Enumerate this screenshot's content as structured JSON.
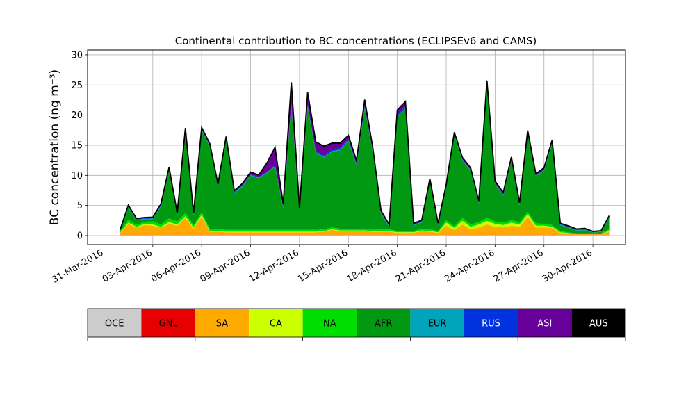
{
  "chart_data": {
    "type": "area",
    "stacked": true,
    "title": "Continental contribution to BC concentrations (ECLIPSEv6 and CAMS)",
    "ylabel": "BC concentration (ng m⁻³)",
    "xlabel": "",
    "xlim": [
      "2016-03-30",
      "2016-05-02"
    ],
    "ylim": [
      -1.5,
      30.8
    ],
    "yticks": [
      0,
      5,
      10,
      15,
      20,
      25,
      30
    ],
    "xticks": [
      "2016-03-31",
      "2016-04-03",
      "2016-04-06",
      "2016-04-09",
      "2016-04-12",
      "2016-04-15",
      "2016-04-18",
      "2016-04-21",
      "2016-04-24",
      "2016-04-27",
      "2016-04-30"
    ],
    "xtick_labels": [
      "31-Mar-2016",
      "03-Apr-2016",
      "06-Apr-2016",
      "09-Apr-2016",
      "12-Apr-2016",
      "15-Apr-2016",
      "18-Apr-2016",
      "21-Apr-2016",
      "24-Apr-2016",
      "27-Apr-2016",
      "30-Apr-2016"
    ],
    "grid": true,
    "x": [
      "2016-04-01",
      "2016-04-01 12:00",
      "2016-04-02",
      "2016-04-02 12:00",
      "2016-04-03",
      "2016-04-03 12:00",
      "2016-04-04",
      "2016-04-04 12:00",
      "2016-04-05",
      "2016-04-05 12:00",
      "2016-04-06",
      "2016-04-06 12:00",
      "2016-04-07",
      "2016-04-07 12:00",
      "2016-04-08",
      "2016-04-08 12:00",
      "2016-04-09",
      "2016-04-09 12:00",
      "2016-04-10",
      "2016-04-10 12:00",
      "2016-04-11",
      "2016-04-11 12:00",
      "2016-04-12",
      "2016-04-12 12:00",
      "2016-04-13",
      "2016-04-13 12:00",
      "2016-04-14",
      "2016-04-14 12:00",
      "2016-04-15",
      "2016-04-15 12:00",
      "2016-04-16",
      "2016-04-16 12:00",
      "2016-04-17",
      "2016-04-17 12:00",
      "2016-04-18",
      "2016-04-18 12:00",
      "2016-04-19",
      "2016-04-19 12:00",
      "2016-04-20",
      "2016-04-20 12:00",
      "2016-04-21",
      "2016-04-21 12:00",
      "2016-04-22",
      "2016-04-22 12:00",
      "2016-04-23",
      "2016-04-23 12:00",
      "2016-04-24",
      "2016-04-24 12:00",
      "2016-04-25",
      "2016-04-25 12:00",
      "2016-04-26",
      "2016-04-26 12:00",
      "2016-04-27",
      "2016-04-27 12:00",
      "2016-04-28",
      "2016-04-28 12:00",
      "2016-04-29",
      "2016-04-29 12:00",
      "2016-04-30",
      "2016-04-30 12:00",
      "2016-05-01"
    ],
    "series": [
      {
        "name": "OCE",
        "color": "#cccccc",
        "values": [
          0.1,
          0.1,
          0.1,
          0.1,
          0.1,
          0.1,
          0.1,
          0.1,
          0.1,
          0.1,
          0.1,
          0.1,
          0.1,
          0.1,
          0.1,
          0.1,
          0.1,
          0.1,
          0.1,
          0.1,
          0.1,
          0.1,
          0.1,
          0.1,
          0.1,
          0.1,
          0.1,
          0.1,
          0.1,
          0.1,
          0.1,
          0.1,
          0.1,
          0.1,
          0.1,
          0.1,
          0.1,
          0.1,
          0.1,
          0.1,
          0.1,
          0.1,
          0.1,
          0.1,
          0.1,
          0.1,
          0.1,
          0.1,
          0.1,
          0.1,
          0.1,
          0.1,
          0.1,
          0.1,
          0.1,
          0.1,
          0.1,
          0.1,
          0.1,
          0.1,
          0.1
        ]
      },
      {
        "name": "GNL",
        "color": "#e60000",
        "values": [
          0.05,
          0.05,
          0.05,
          0.05,
          0.05,
          0.05,
          0.05,
          0.05,
          0.05,
          0.05,
          0.05,
          0.05,
          0.05,
          0.05,
          0.05,
          0.05,
          0.05,
          0.05,
          0.05,
          0.05,
          0.05,
          0.05,
          0.05,
          0.05,
          0.05,
          0.05,
          0.05,
          0.05,
          0.05,
          0.05,
          0.05,
          0.05,
          0.05,
          0.05,
          0.05,
          0.05,
          0.05,
          0.05,
          0.05,
          0.05,
          0.05,
          0.05,
          0.05,
          0.05,
          0.05,
          0.05,
          0.05,
          0.05,
          0.05,
          0.05,
          0.05,
          0.05,
          0.05,
          0.05,
          0.05,
          0.05,
          0.05,
          0.05,
          0.05,
          0.05,
          0.05
        ]
      },
      {
        "name": "SA",
        "color": "#ffaa00",
        "values": [
          0.3,
          1.8,
          1.2,
          1.6,
          1.5,
          1.2,
          1.8,
          1.5,
          2.8,
          1.0,
          3.0,
          0.5,
          0.5,
          0.4,
          0.4,
          0.4,
          0.4,
          0.4,
          0.4,
          0.4,
          0.4,
          0.4,
          0.4,
          0.4,
          0.4,
          0.5,
          0.8,
          0.6,
          0.6,
          0.6,
          0.6,
          0.5,
          0.5,
          0.5,
          0.3,
          0.3,
          0.3,
          0.6,
          0.5,
          0.3,
          1.5,
          0.8,
          1.7,
          0.9,
          1.2,
          1.7,
          1.3,
          1.2,
          1.5,
          1.3,
          3.0,
          1.2,
          1.2,
          1.1,
          0.3,
          0.2,
          0.1,
          0.1,
          0.1,
          0.1,
          0.5
        ]
      },
      {
        "name": "CA",
        "color": "#ccff00",
        "values": [
          0.05,
          0.2,
          0.1,
          0.15,
          0.2,
          0.1,
          0.3,
          0.2,
          0.3,
          0.2,
          0.3,
          0.1,
          0.1,
          0.1,
          0.1,
          0.1,
          0.1,
          0.1,
          0.1,
          0.1,
          0.1,
          0.1,
          0.1,
          0.1,
          0.1,
          0.1,
          0.1,
          0.1,
          0.1,
          0.1,
          0.1,
          0.1,
          0.1,
          0.1,
          0.1,
          0.1,
          0.1,
          0.1,
          0.1,
          0.1,
          0.5,
          0.3,
          0.6,
          0.4,
          0.5,
          0.6,
          0.5,
          0.4,
          0.5,
          0.4,
          0.4,
          0.3,
          0.3,
          0.2,
          0.1,
          0.05,
          0.05,
          0.05,
          0.05,
          0.05,
          0.1
        ]
      },
      {
        "name": "NA",
        "color": "#00dd00",
        "values": [
          0.2,
          0.5,
          0.3,
          0.4,
          0.5,
          0.4,
          0.6,
          0.5,
          0.5,
          0.4,
          0.4,
          0.4,
          0.4,
          0.3,
          0.3,
          0.3,
          0.3,
          0.3,
          0.3,
          0.3,
          0.3,
          0.3,
          0.3,
          0.3,
          0.3,
          0.3,
          0.3,
          0.3,
          0.3,
          0.3,
          0.3,
          0.3,
          0.3,
          0.3,
          0.2,
          0.2,
          0.2,
          0.3,
          0.3,
          0.2,
          0.4,
          0.3,
          0.5,
          0.4,
          0.4,
          0.5,
          0.4,
          0.4,
          0.4,
          0.4,
          0.4,
          0.4,
          0.3,
          0.3,
          0.2,
          0.1,
          0.1,
          0.1,
          0.1,
          0.1,
          0.3
        ]
      },
      {
        "name": "AFR",
        "color": "#009911",
        "values": [
          0.1,
          2.0,
          0.8,
          0.4,
          0.4,
          3.0,
          8.0,
          1.0,
          13.6,
          1.6,
          13.6,
          13.6,
          7.0,
          15.0,
          6.1,
          7.2,
          9.0,
          8.6,
          9.4,
          10.5,
          3.5,
          20.6,
          2.9,
          20.4,
          12.8,
          11.9,
          12.6,
          13.0,
          14.6,
          10.5,
          20.0,
          12.7,
          2.6,
          0.4,
          19.0,
          20.3,
          0.9,
          1.0,
          8.0,
          0.9,
          5.5,
          15.1,
          9.5,
          8.9,
          3.0,
          22.0,
          6.2,
          4.5,
          10.0,
          2.8,
          13.0,
          7.8,
          8.8,
          13.6,
          1.0,
          0.8,
          0.4,
          0.5,
          0.1,
          0.2,
          2.0
        ]
      },
      {
        "name": "EUR",
        "color": "#00a5bb",
        "values": [
          0.1,
          0.1,
          0.1,
          0.1,
          0.1,
          0.1,
          0.1,
          0.1,
          0.1,
          0.1,
          0.1,
          0.1,
          0.1,
          0.1,
          0.1,
          0.1,
          0.1,
          0.1,
          0.1,
          0.1,
          0.1,
          0.1,
          0.1,
          0.1,
          0.1,
          0.1,
          0.1,
          0.1,
          0.1,
          0.1,
          0.1,
          0.1,
          0.1,
          0.1,
          0.1,
          0.1,
          0.1,
          0.1,
          0.1,
          0.1,
          0.1,
          0.1,
          0.1,
          0.1,
          0.1,
          0.1,
          0.1,
          0.1,
          0.1,
          0.1,
          0.1,
          0.1,
          0.1,
          0.1,
          0.1,
          0.1,
          0.1,
          0.1,
          0.1,
          0.1,
          0.1
        ]
      },
      {
        "name": "RUS",
        "color": "#0033dd",
        "values": [
          0.05,
          0.1,
          0.1,
          0.1,
          0.1,
          0.1,
          0.1,
          0.1,
          0.1,
          0.1,
          0.1,
          0.1,
          0.1,
          0.1,
          0.1,
          0.1,
          0.1,
          0.1,
          0.1,
          0.1,
          0.2,
          0.3,
          0.1,
          0.3,
          0.2,
          0.3,
          0.3,
          0.3,
          0.2,
          0.2,
          0.3,
          0.2,
          0.1,
          0.1,
          0.2,
          0.3,
          0.1,
          0.1,
          0.1,
          0.1,
          0.1,
          0.1,
          0.1,
          0.1,
          0.1,
          0.2,
          0.1,
          0.1,
          0.1,
          0.1,
          0.1,
          0.1,
          0.1,
          0.1,
          0.1,
          0.1,
          0.1,
          0.1,
          0.05,
          0.05,
          0.05
        ]
      },
      {
        "name": "ASI",
        "color": "#660099",
        "values": [
          0.05,
          0.2,
          0.1,
          0.1,
          0.1,
          0.2,
          0.3,
          0.2,
          0.3,
          0.2,
          0.3,
          0.3,
          0.2,
          0.3,
          0.2,
          0.3,
          0.4,
          0.3,
          1.5,
          3.0,
          0.5,
          3.5,
          0.5,
          2.0,
          1.5,
          1.5,
          1.0,
          0.8,
          0.6,
          0.5,
          1.0,
          0.5,
          0.3,
          0.2,
          0.8,
          0.8,
          0.2,
          0.2,
          0.2,
          0.2,
          0.2,
          0.3,
          0.3,
          0.3,
          0.3,
          0.5,
          0.3,
          0.3,
          0.3,
          0.2,
          0.3,
          0.2,
          0.3,
          0.3,
          0.1,
          0.1,
          0.1,
          0.1,
          0.05,
          0.05,
          0.1
        ]
      },
      {
        "name": "AUS",
        "color": "#000000",
        "values": [
          0.0,
          0.0,
          0.0,
          0.0,
          0.0,
          0.0,
          0.0,
          0.0,
          0.0,
          0.0,
          0.0,
          0.0,
          0.0,
          0.0,
          0.0,
          0.0,
          0.0,
          0.0,
          0.0,
          0.0,
          0.0,
          0.0,
          0.0,
          0.0,
          0.0,
          0.0,
          0.0,
          0.0,
          0.0,
          0.0,
          0.0,
          0.0,
          0.0,
          0.0,
          0.0,
          0.0,
          0.0,
          0.0,
          0.0,
          0.0,
          0.0,
          0.0,
          0.0,
          0.0,
          0.0,
          0.0,
          0.0,
          0.0,
          0.0,
          0.0,
          0.0,
          0.0,
          0.0,
          0.0,
          0.0,
          0.0,
          0.0,
          0.0,
          0.0,
          0.0,
          0.0
        ]
      }
    ],
    "total_line_color": "#000000",
    "legend_placement": "bottom (colorbar)"
  }
}
